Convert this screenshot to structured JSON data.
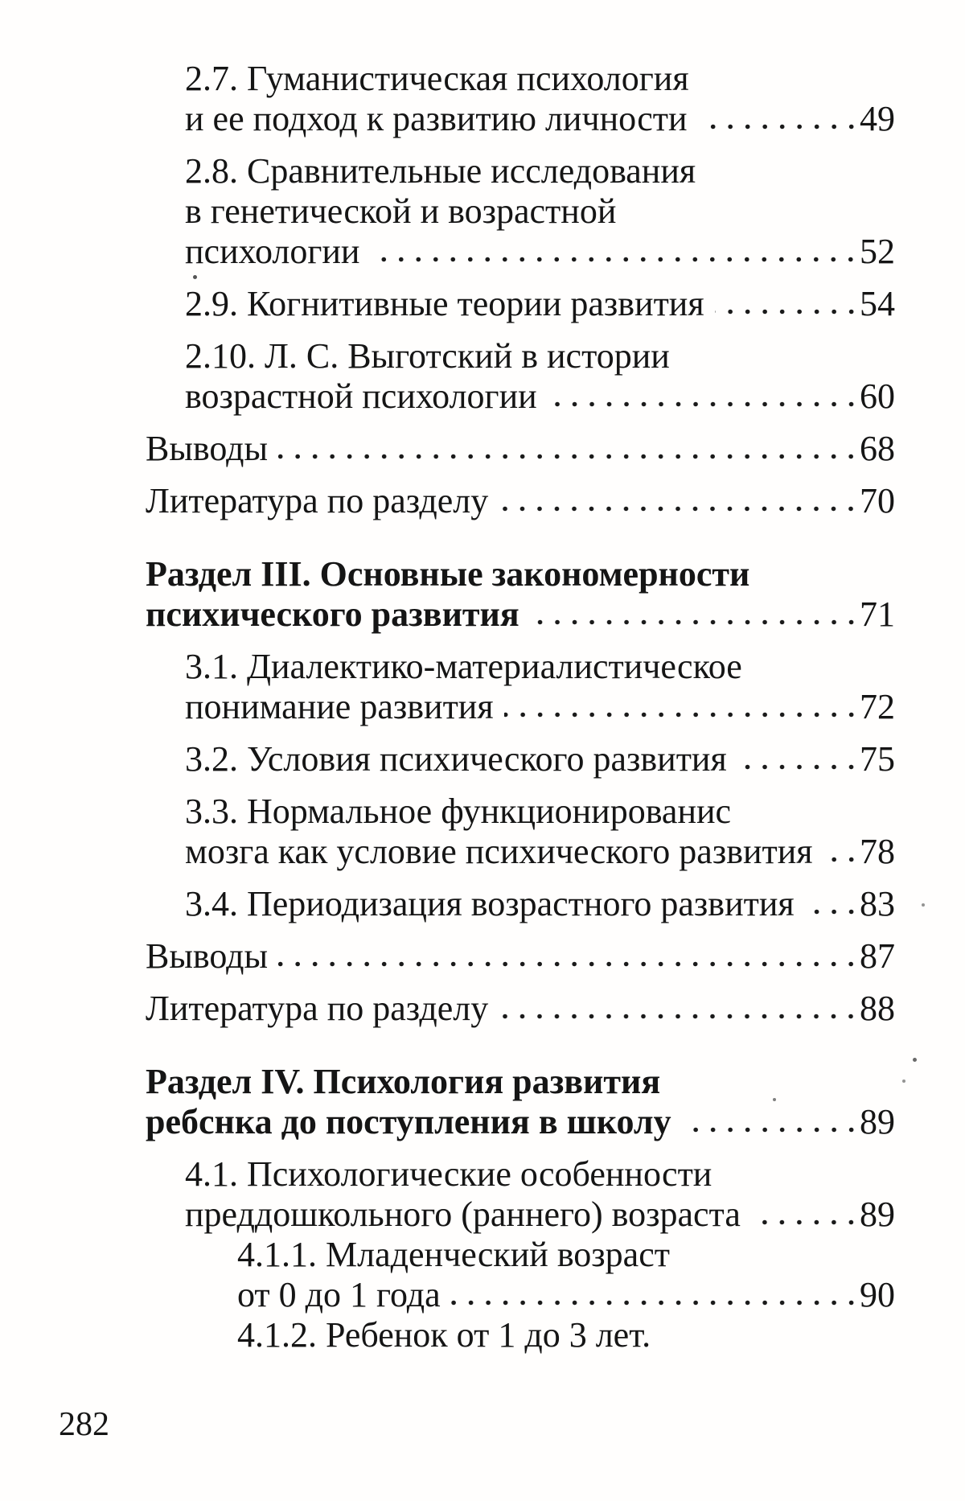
{
  "colors": {
    "ink": "#151515",
    "paper": "#fffefd"
  },
  "toc": {
    "entries": [
      {
        "level": 1,
        "bold": false,
        "lines": [
          "2.7. Гуманистическая психология",
          "и ее подход к развитию личности"
        ],
        "page": "49"
      },
      {
        "level": 1,
        "bold": false,
        "lines": [
          "2.8. Сравнительные исследования",
          "в генетической и возрастной",
          "психологии"
        ],
        "page": "52"
      },
      {
        "level": 1,
        "bold": false,
        "lines": [
          "2.9. Когнитивные теории развития"
        ],
        "page": "54"
      },
      {
        "level": 1,
        "bold": false,
        "lines": [
          "2.10. Л. С. Выготский в истории",
          "возрастной психологии"
        ],
        "page": "60"
      },
      {
        "level": 0,
        "bold": false,
        "lines": [
          "Выводы"
        ],
        "page": "68"
      },
      {
        "level": 0,
        "bold": false,
        "lines": [
          "Литература по разделу"
        ],
        "page": "70"
      },
      {
        "level": 0,
        "bold": true,
        "lines": [
          "Раздел III. Основные закономерности",
          "психического развития"
        ],
        "page": "71"
      },
      {
        "level": 1,
        "bold": false,
        "lines": [
          "3.1. Диалектико-материалистическое",
          "понимание развития"
        ],
        "page": "72"
      },
      {
        "level": 1,
        "bold": false,
        "lines": [
          "3.2. Условия психического развития"
        ],
        "page": "75"
      },
      {
        "level": 1,
        "bold": false,
        "lines": [
          "3.3. Нормальное функционированис",
          "мозга как условие психического развития"
        ],
        "page": "78"
      },
      {
        "level": 1,
        "bold": false,
        "lines": [
          "3.4. Периодизация возрастного развития"
        ],
        "page": "83"
      },
      {
        "level": 0,
        "bold": false,
        "lines": [
          "Выводы"
        ],
        "page": "87"
      },
      {
        "level": 0,
        "bold": false,
        "lines": [
          "Литература по разделу"
        ],
        "page": "88"
      },
      {
        "level": 0,
        "bold": true,
        "lines": [
          "Раздел IV. Психология развития",
          "ребснка до поступления в школу"
        ],
        "page": "89"
      },
      {
        "level": 1,
        "bold": false,
        "lines": [
          "4.1. Психологические особенности",
          "преддошкольного (раннего) возраста"
        ],
        "page": "89"
      },
      {
        "level": 2,
        "bold": false,
        "lines": [
          "4.1.1. Младенческий возраст",
          "от 0 до 1 года"
        ],
        "page": "90"
      },
      {
        "level": 2,
        "bold": false,
        "lines": [
          "4.1.2. Ребенок от 1 до 3 лет."
        ],
        "page": null
      }
    ]
  },
  "footer": {
    "page_number": "282"
  }
}
